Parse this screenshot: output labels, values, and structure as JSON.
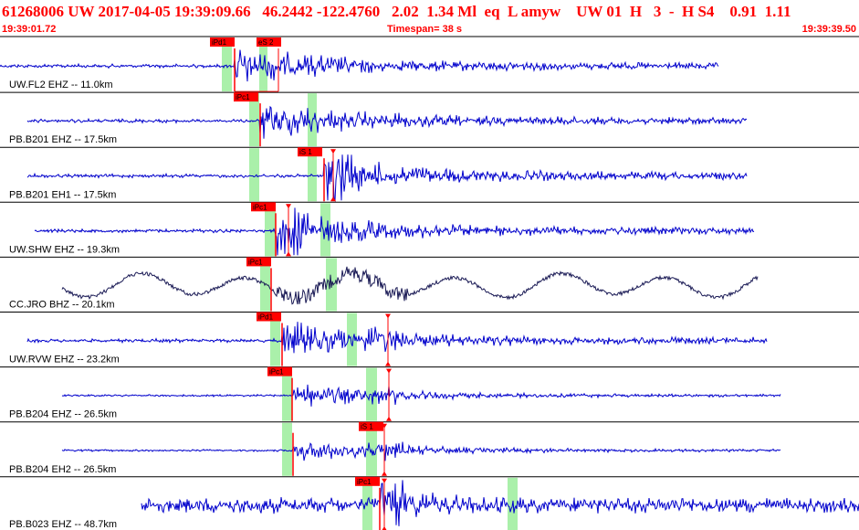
{
  "header": {
    "title": "61268006 UW 2017-04-05 19:39:09.66   46.2442 -122.4760   2.02  1.34 Ml  eq  L amyw    UW 01  H   3  -  H S4    0.91  1.11",
    "start_time": "19:39:01.72",
    "timespan": "Timespan=  38 s",
    "end_time": "19:39:39.50"
  },
  "colors": {
    "trace": "#0000cc",
    "trace_dark": "#1a1a55",
    "pick_flag": "#ff0000",
    "window": "#aaf0aa",
    "header_text": "#ff0000"
  },
  "traces": [
    {
      "label": "UW.FL2 EHZ -- 11.0km",
      "picks": [
        "iPd1",
        "eS 2"
      ]
    },
    {
      "label": "PB.B201 EHZ -- 17.5km",
      "picks": [
        "iPc1"
      ]
    },
    {
      "label": "PB.B201 EH1 -- 17.5km",
      "picks": [
        "iS 1"
      ]
    },
    {
      "label": "UW.SHW EHZ -- 19.3km",
      "picks": [
        "iPc1"
      ]
    },
    {
      "label": "CC.JRO BHZ -- 20.1km",
      "picks": [
        "iPc1"
      ]
    },
    {
      "label": "UW.RVW EHZ -- 23.2km",
      "picks": [
        "iPd1"
      ]
    },
    {
      "label": "PB.B204 EHZ -- 26.5km",
      "picks": [
        "iPc1"
      ]
    },
    {
      "label": "PB.B204 EH2 -- 26.5km",
      "picks": [
        "iS 1"
      ]
    },
    {
      "label": "PB.B023 EHZ -- 48.7km",
      "picks": [
        "iPc1"
      ]
    }
  ]
}
